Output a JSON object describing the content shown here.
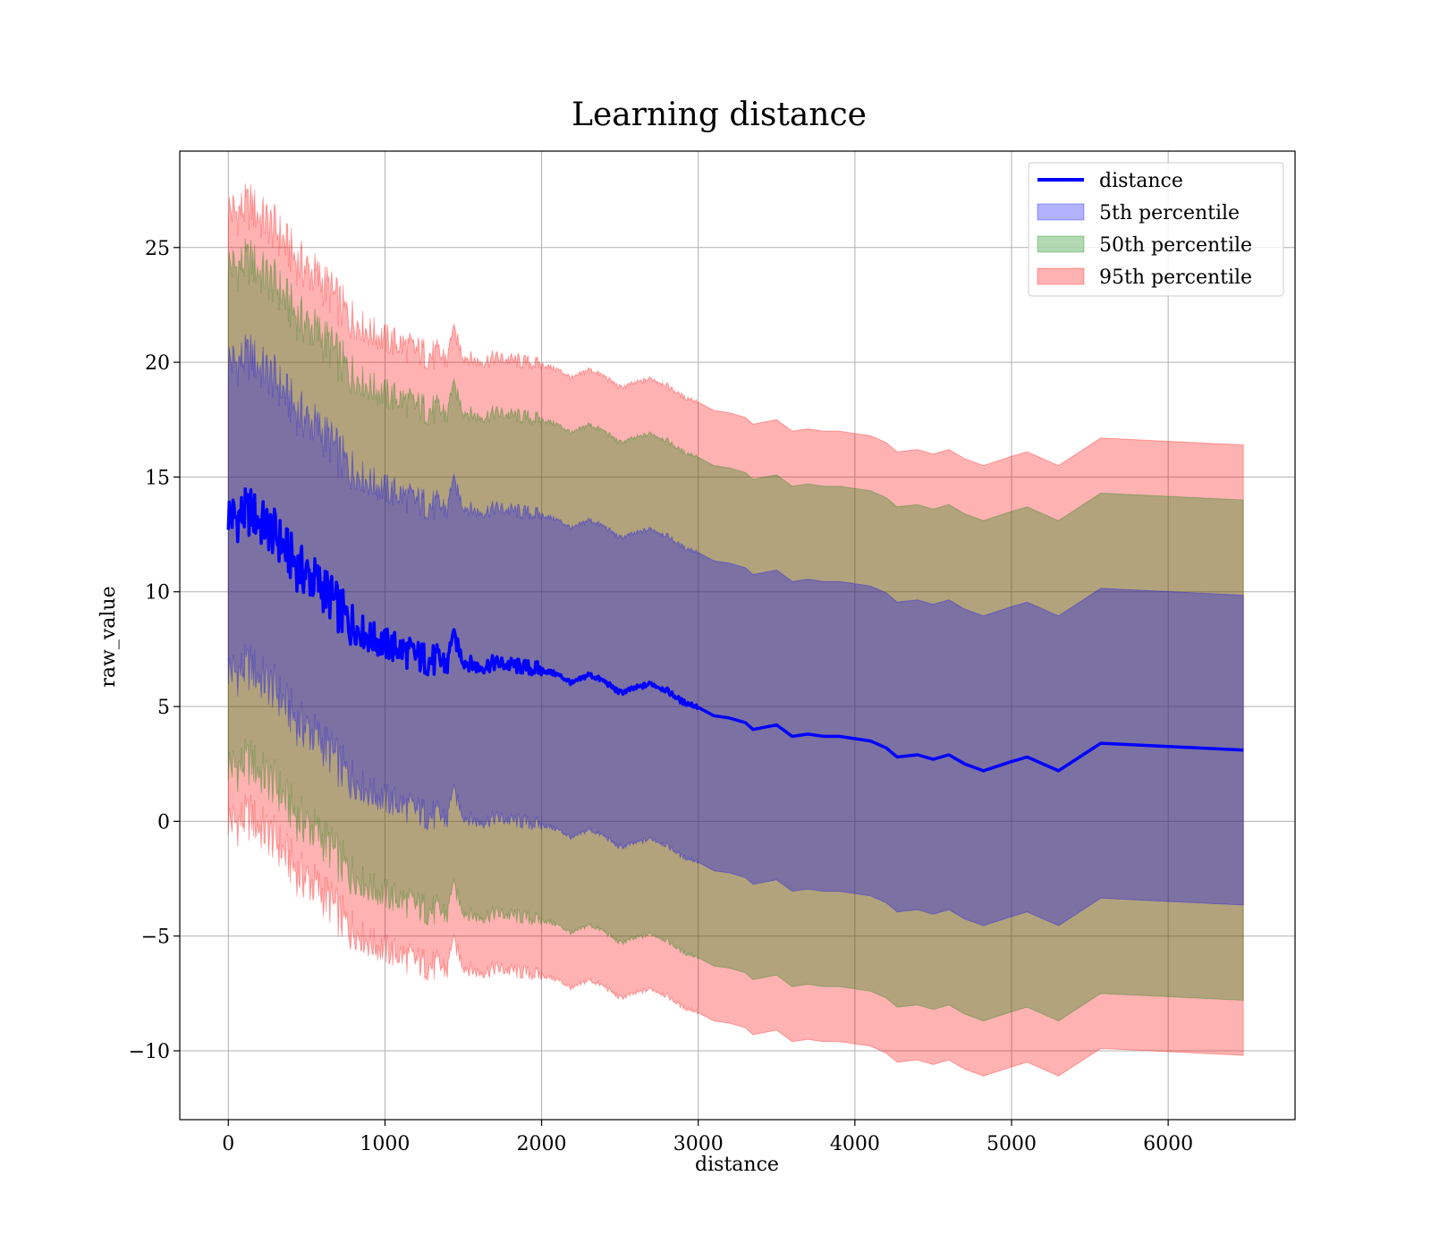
{
  "chart_data": {
    "type": "line",
    "title": "Learning distance",
    "xlabel": "distance",
    "ylabel": "raw_value",
    "xlim": [
      -310,
      6810
    ],
    "ylim": [
      -13,
      29.2
    ],
    "xticks": [
      0,
      1000,
      2000,
      3000,
      4000,
      5000,
      6000
    ],
    "yticks": [
      -10,
      -5,
      0,
      5,
      10,
      15,
      20,
      25
    ],
    "xtick_labels": [
      "0",
      "1000",
      "2000",
      "3000",
      "4000",
      "5000",
      "6000"
    ],
    "ytick_labels": [
      "−10",
      "−5",
      "0",
      "5",
      "10",
      "15",
      "20",
      "25"
    ],
    "grid": true,
    "legend_position": "top-right",
    "series": [
      {
        "name": "distance",
        "kind": "line",
        "color": "#0000ff",
        "x": [
          0,
          50,
          100,
          150,
          200,
          250,
          300,
          350,
          400,
          450,
          500,
          550,
          600,
          650,
          700,
          750,
          800,
          850,
          900,
          950,
          1000,
          1100,
          1200,
          1300,
          1400,
          1430,
          1500,
          1600,
          1700,
          1800,
          1900,
          2000,
          2100,
          2200,
          2300,
          2400,
          2500,
          2600,
          2700,
          2800,
          2900,
          3000,
          3100,
          3200,
          3300,
          3350,
          3500,
          3600,
          3700,
          3800,
          3900,
          4000,
          4100,
          4200,
          4270,
          4400,
          4500,
          4600,
          4700,
          4820,
          5000,
          5100,
          5300,
          5570,
          6480
        ],
        "y": [
          13.4,
          13.2,
          13.4,
          13.5,
          13.0,
          12.8,
          12.5,
          12.0,
          11.5,
          11.0,
          10.8,
          10.5,
          10.2,
          9.8,
          9.3,
          8.8,
          8.5,
          8.3,
          8.0,
          7.9,
          7.7,
          7.5,
          7.2,
          7.0,
          6.9,
          8.2,
          7.0,
          6.7,
          6.9,
          6.8,
          6.7,
          6.6,
          6.4,
          6.0,
          6.4,
          6.1,
          5.6,
          5.8,
          6.0,
          5.7,
          5.2,
          5.0,
          4.6,
          4.5,
          4.3,
          4.0,
          4.2,
          3.7,
          3.8,
          3.7,
          3.7,
          3.6,
          3.5,
          3.2,
          2.8,
          2.9,
          2.7,
          2.9,
          2.5,
          2.2,
          2.6,
          2.8,
          2.2,
          3.4,
          3.1
        ]
      },
      {
        "name": "5th percentile",
        "kind": "band",
        "color": "#0000ff",
        "alpha": 0.3,
        "half_width": 6.75
      },
      {
        "name": "50th percentile",
        "kind": "band",
        "color": "#008000",
        "alpha": 0.3,
        "half_width": 10.9
      },
      {
        "name": "95th percentile",
        "kind": "band",
        "color": "#ff0000",
        "alpha": 0.3,
        "half_width": 13.3
      }
    ],
    "legend": [
      "distance",
      "5th percentile",
      "50th percentile",
      "95th percentile"
    ]
  }
}
